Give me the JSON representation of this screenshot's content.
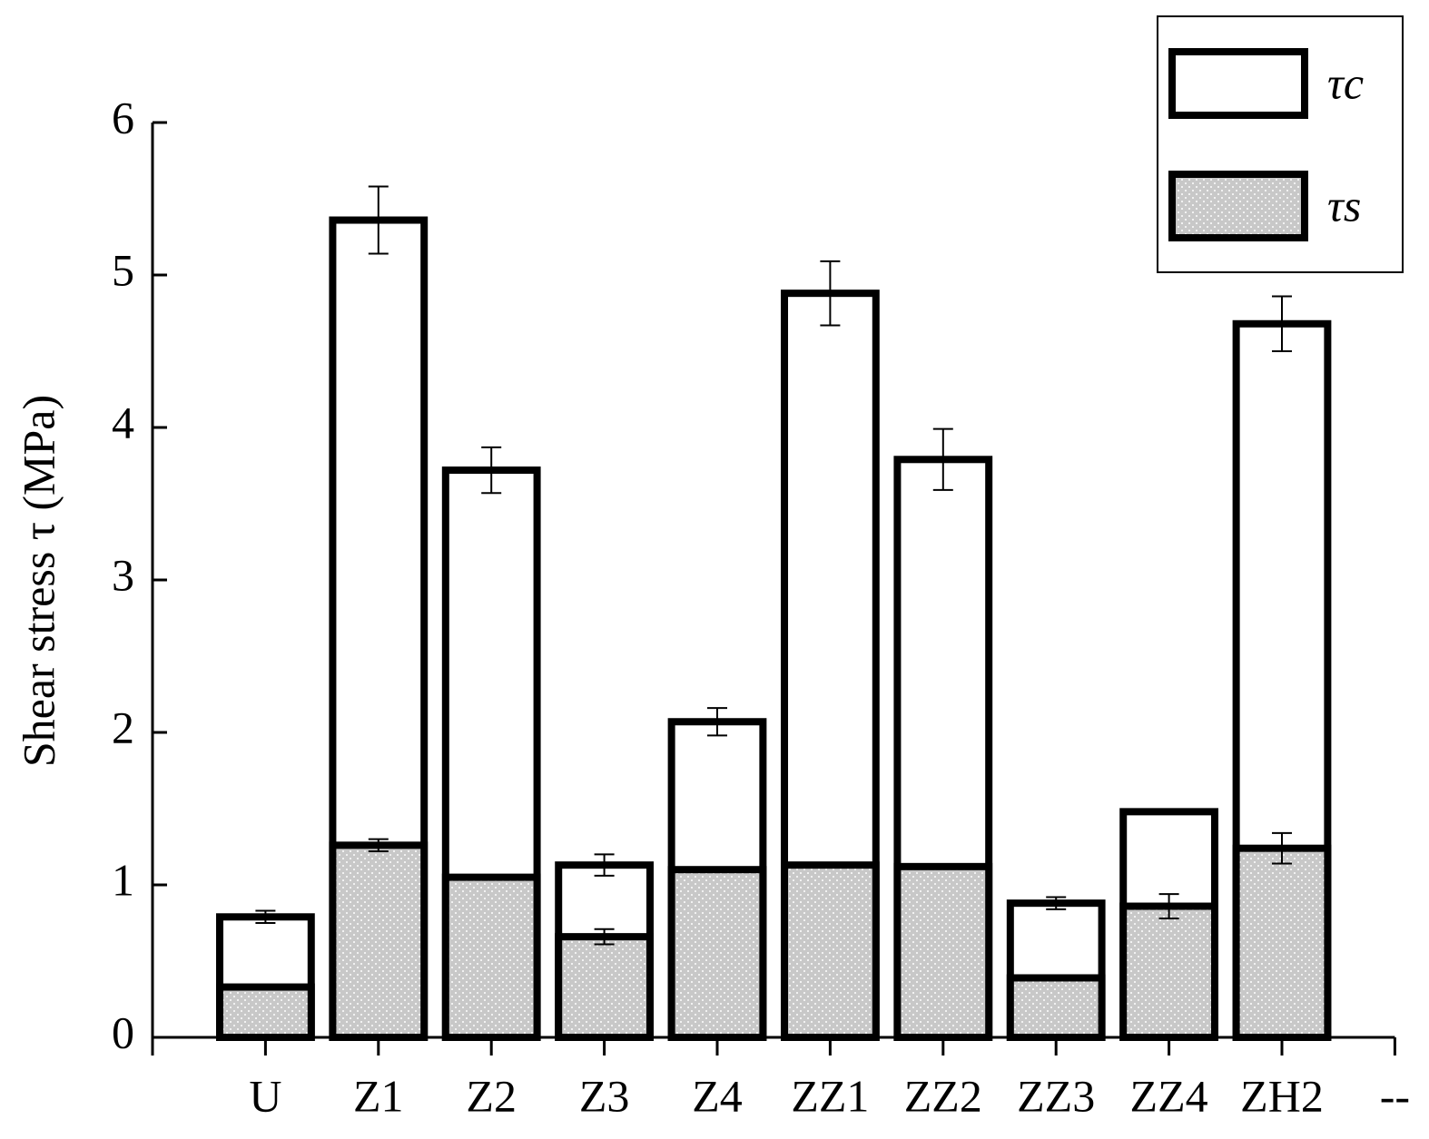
{
  "chart_data": {
    "type": "bar",
    "overlap": true,
    "y_label": "Shear stress τ (MPa)",
    "categories": [
      "U",
      "Z1",
      "Z2",
      "Z3",
      "Z4",
      "ZZ1",
      "ZZ2",
      "ZZ3",
      "ZZ4",
      "ZH2",
      "--"
    ],
    "series": [
      {
        "name": "τc",
        "color": "#ffffff",
        "pattern": false,
        "values": [
          0.79,
          5.36,
          3.72,
          1.13,
          2.07,
          4.88,
          3.79,
          0.88,
          1.48,
          4.68,
          null
        ],
        "errors": [
          0.04,
          0.22,
          0.15,
          0.07,
          0.09,
          0.21,
          0.2,
          0.04,
          0.0,
          0.18,
          null
        ]
      },
      {
        "name": "τs",
        "color": "#c8c8c8",
        "pattern": true,
        "values": [
          0.33,
          1.26,
          1.05,
          0.66,
          1.1,
          1.13,
          1.12,
          0.39,
          0.86,
          1.24,
          null
        ],
        "errors": [
          0.0,
          0.04,
          0.0,
          0.05,
          0.01,
          0.0,
          0.0,
          0.0,
          0.08,
          0.1,
          null
        ]
      }
    ],
    "ylim": [
      0,
      6
    ],
    "yticks": [
      0,
      1,
      2,
      3,
      4,
      5,
      6
    ],
    "grid": false,
    "legend": "upper right"
  }
}
